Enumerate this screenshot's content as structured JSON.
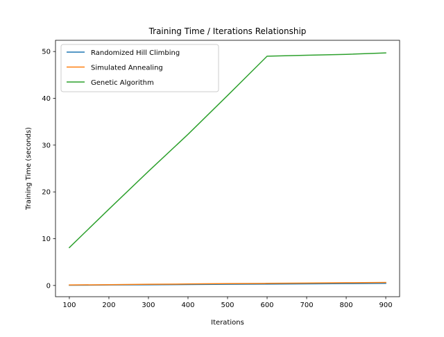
{
  "chart_data": {
    "type": "line",
    "title": "Training Time / Iterations Relationship",
    "xlabel": "Iterations",
    "ylabel": "Training Time (seconds)",
    "x": [
      100,
      200,
      300,
      400,
      500,
      600,
      700,
      800,
      900
    ],
    "xlim": [
      65,
      935
    ],
    "ylim": [
      -2.4,
      52.4
    ],
    "xticks": [
      100,
      200,
      300,
      400,
      500,
      600,
      700,
      800,
      900
    ],
    "yticks": [
      0,
      10,
      20,
      30,
      40,
      50
    ],
    "grid": false,
    "legend_position": "top-left",
    "series": [
      {
        "name": "Randomized Hill Climbing",
        "color": "#1f77b4",
        "values": [
          0.05,
          0.1,
          0.15,
          0.2,
          0.25,
          0.3,
          0.35,
          0.4,
          0.45
        ]
      },
      {
        "name": "Simulated Annealing",
        "color": "#ff7f0e",
        "values": [
          0.1,
          0.17,
          0.25,
          0.32,
          0.4,
          0.45,
          0.52,
          0.58,
          0.65
        ]
      },
      {
        "name": "Genetic Algorithm",
        "color": "#2ca02c",
        "values": [
          8.1,
          16.3,
          24.4,
          32.3,
          40.6,
          49.0,
          49.2,
          49.4,
          49.7
        ]
      }
    ]
  }
}
